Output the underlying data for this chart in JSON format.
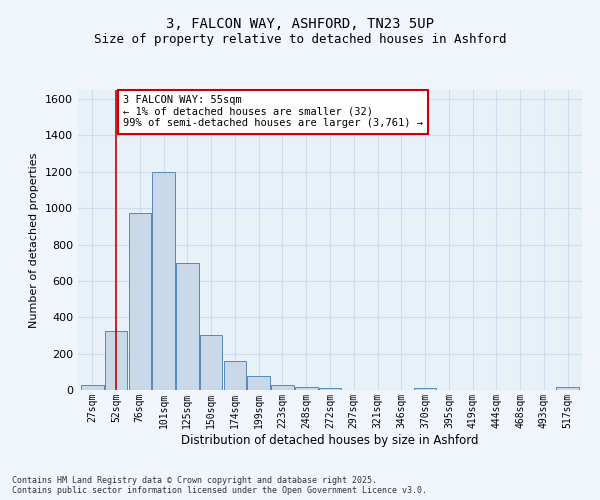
{
  "title_line1": "3, FALCON WAY, ASHFORD, TN23 5UP",
  "title_line2": "Size of property relative to detached houses in Ashford",
  "xlabel": "Distribution of detached houses by size in Ashford",
  "ylabel": "Number of detached properties",
  "bin_labels": [
    "27sqm",
    "52sqm",
    "76sqm",
    "101sqm",
    "125sqm",
    "150sqm",
    "174sqm",
    "199sqm",
    "223sqm",
    "248sqm",
    "272sqm",
    "297sqm",
    "321sqm",
    "346sqm",
    "370sqm",
    "395sqm",
    "419sqm",
    "444sqm",
    "468sqm",
    "493sqm",
    "517sqm"
  ],
  "bar_values": [
    25,
    325,
    975,
    1200,
    700,
    300,
    160,
    75,
    25,
    15,
    10,
    0,
    0,
    0,
    10,
    0,
    0,
    0,
    0,
    0,
    15
  ],
  "bar_color": "#c8d8e8",
  "bar_edge_color": "#5589bb",
  "vline_x": 1,
  "vline_color": "#cc0000",
  "annotation_text": "3 FALCON WAY: 55sqm\n← 1% of detached houses are smaller (32)\n99% of semi-detached houses are larger (3,761) →",
  "annotation_box_color": "#ffffff",
  "annotation_box_edge": "#cc0000",
  "ylim": [
    0,
    1650
  ],
  "yticks": [
    0,
    200,
    400,
    600,
    800,
    1000,
    1200,
    1400,
    1600
  ],
  "grid_color": "#ccddee",
  "bg_color": "#e8f0f8",
  "fig_bg_color": "#f0f6fc",
  "footer_line1": "Contains HM Land Registry data © Crown copyright and database right 2025.",
  "footer_line2": "Contains public sector information licensed under the Open Government Licence v3.0."
}
